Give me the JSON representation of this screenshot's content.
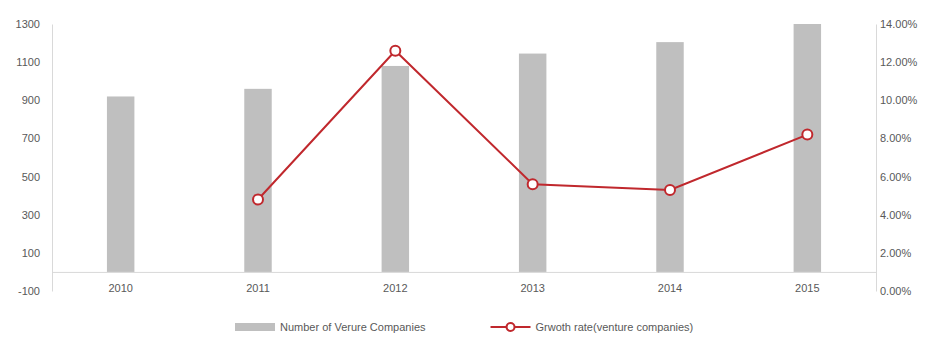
{
  "chart_data": {
    "type": "bar",
    "categories": [
      "2010",
      "2011",
      "2012",
      "2013",
      "2014",
      "2015"
    ],
    "series": [
      {
        "name": "Number of Verure Companies",
        "type": "bar",
        "color": "#bfbfbf",
        "values": [
          920,
          960,
          1080,
          1145,
          1205,
          1300
        ]
      },
      {
        "name": "Grwoth rate(venture companies)",
        "type": "line",
        "axis": "y2",
        "color": "#c0282d",
        "marker": "circle",
        "values": [
          null,
          4.8,
          12.6,
          5.6,
          5.3,
          8.2
        ]
      }
    ],
    "ylim": [
      -100,
      1300
    ],
    "yticks": [
      -100,
      100,
      300,
      500,
      700,
      900,
      1100,
      1300
    ],
    "y2lim": [
      0,
      14
    ],
    "y2ticks": [
      {
        "value": 0,
        "label": "0.00%"
      },
      {
        "value": 2,
        "label": "2.00%"
      },
      {
        "value": 4,
        "label": "4.00%"
      },
      {
        "value": 6,
        "label": "6.00%"
      },
      {
        "value": 8,
        "label": "8.00%"
      },
      {
        "value": 10,
        "label": "10.00%"
      },
      {
        "value": 12,
        "label": "12.00%"
      },
      {
        "value": 14,
        "label": "14.00%"
      }
    ],
    "grid": false,
    "legend": "bottom"
  }
}
